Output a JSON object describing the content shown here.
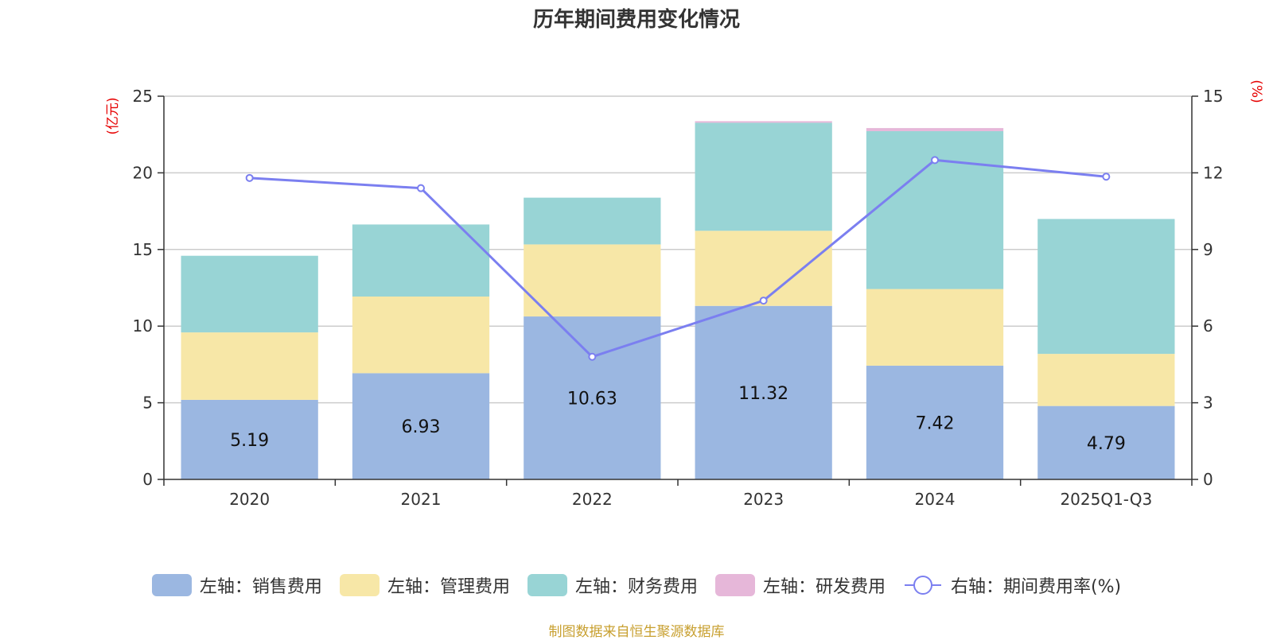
{
  "chart_data": {
    "type": "bar",
    "title": "历年期间费用变化情况",
    "categories": [
      "2020",
      "2021",
      "2022",
      "2023",
      "2024",
      "2025Q1-Q3"
    ],
    "left_axis": {
      "unit": "(亿元)",
      "ylim": [
        0,
        25
      ],
      "ticks": [
        0,
        5,
        10,
        15,
        20,
        25
      ]
    },
    "right_axis": {
      "unit": "(%)",
      "ylim": [
        0,
        15
      ],
      "ticks": [
        0,
        3,
        6,
        9,
        12,
        15
      ]
    },
    "series": [
      {
        "name": "左轴：销售费用",
        "type": "bar",
        "axis": "left",
        "color": "#9BB7E1",
        "values": [
          5.19,
          6.93,
          10.63,
          11.32,
          7.42,
          4.79
        ],
        "show_labels": true
      },
      {
        "name": "左轴：管理费用",
        "type": "bar",
        "axis": "left",
        "color": "#F7E7A7",
        "values": [
          4.4,
          5.0,
          4.7,
          4.9,
          5.0,
          3.4
        ],
        "show_labels": false
      },
      {
        "name": "左轴：财务费用",
        "type": "bar",
        "axis": "left",
        "color": "#98D4D5",
        "values": [
          5.0,
          4.7,
          3.05,
          7.05,
          10.3,
          8.8
        ],
        "show_labels": false
      },
      {
        "name": "左轴：研发费用",
        "type": "bar",
        "axis": "left",
        "color": "#E6B7D9",
        "values": [
          0,
          0,
          0,
          0.1,
          0.2,
          0
        ],
        "show_labels": false
      },
      {
        "name": "右轴：期间费用率(%)",
        "type": "line",
        "axis": "right",
        "color": "#7B7FF0",
        "values": [
          11.8,
          11.4,
          4.8,
          7.0,
          12.5,
          11.85
        ],
        "show_labels": false
      }
    ],
    "grid": true,
    "legend_position": "bottom"
  },
  "source": "制图数据来自恒生聚源数据库"
}
